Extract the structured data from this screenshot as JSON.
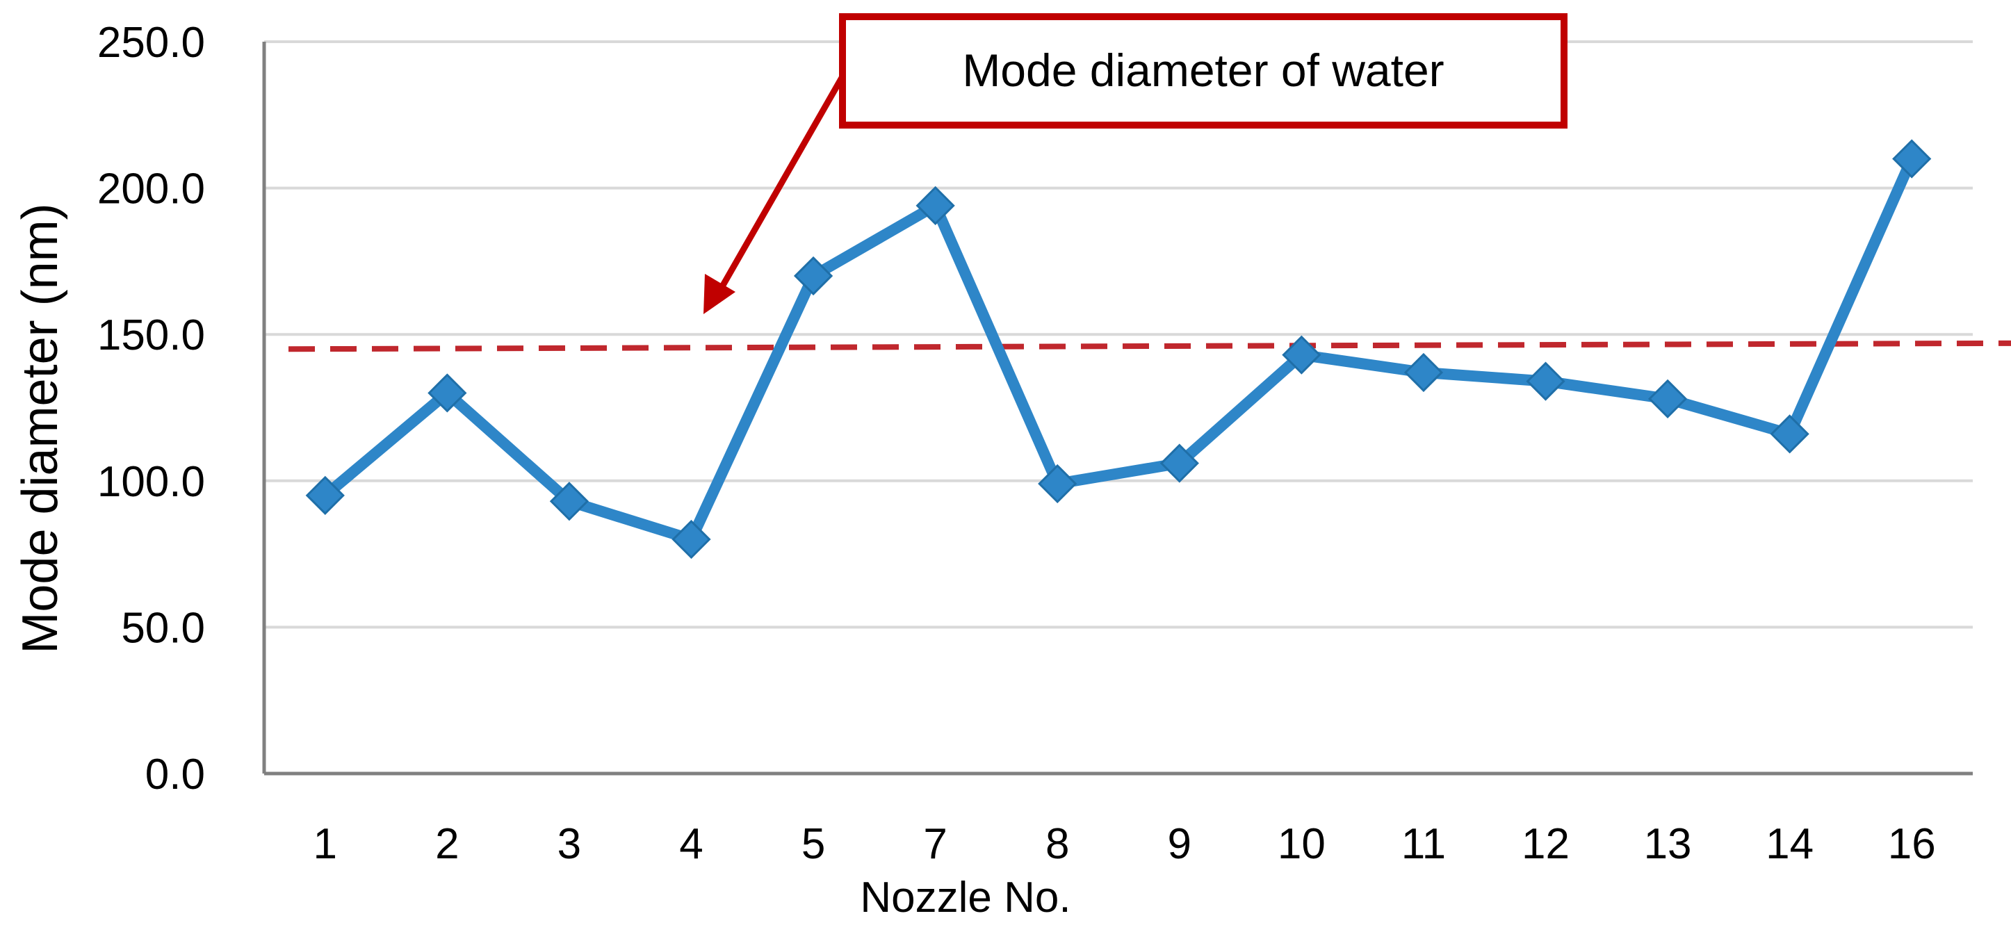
{
  "chart_data": {
    "type": "line",
    "title": "",
    "xlabel": "Nozzle No.",
    "ylabel": "Mode diameter (nm)",
    "categories": [
      "1",
      "2",
      "3",
      "4",
      "5",
      "7",
      "8",
      "9",
      "10",
      "11",
      "12",
      "13",
      "14",
      "16"
    ],
    "series": [
      {
        "values": [
          95,
          130,
          93,
          80,
          170,
          194,
          99,
          106,
          143,
          137,
          134,
          128,
          116,
          210
        ],
        "color": "#2e86c8",
        "marker": "diamond"
      }
    ],
    "ylim": [
      0,
      250
    ],
    "yticks": [
      0,
      50,
      100,
      150,
      200,
      250
    ],
    "ytick_labels": [
      "0.0",
      "50.0",
      "100.0",
      "150.0",
      "200.0",
      "250.0"
    ],
    "grid": "horizontal",
    "reference_line": {
      "style": "dashed",
      "color": "#c0272d",
      "value_start": 145,
      "value_end": 147
    },
    "annotation": {
      "text": "Mode diameter of water",
      "box_color": "#c00000"
    }
  }
}
